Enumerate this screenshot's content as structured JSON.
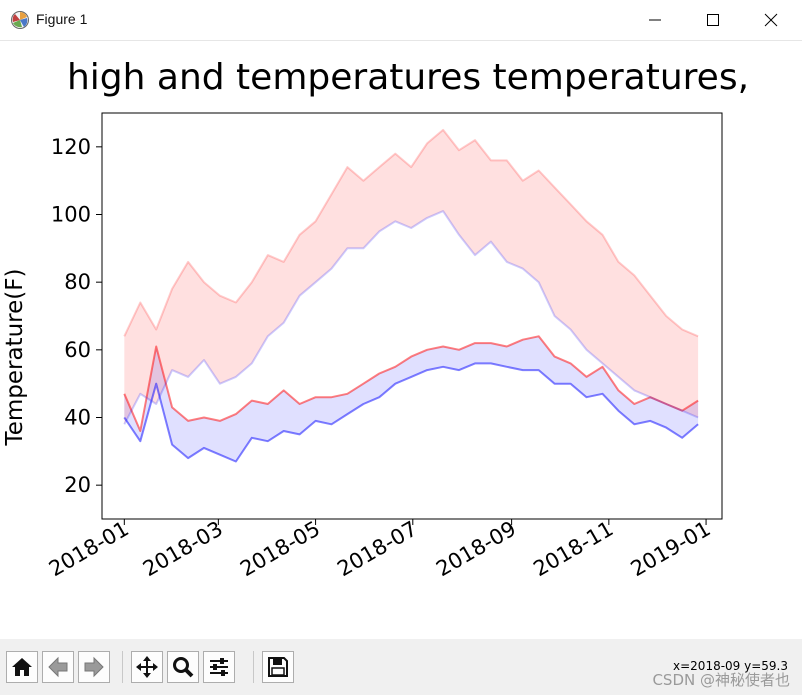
{
  "window": {
    "title": "Figure 1",
    "app_icon": "matplotlib-icon",
    "controls": [
      "minimize-icon",
      "maximize-icon",
      "close-icon"
    ]
  },
  "toolbar": {
    "buttons": [
      "home-icon",
      "back-arrow-icon",
      "forward-arrow-icon",
      "pan-icon",
      "zoom-icon",
      "configure-subplots-icon",
      "save-icon"
    ],
    "coordinate_readout": "x=2018-09 y=59.3",
    "watermark": "CSDN @神秘使者也"
  },
  "chart_data": {
    "type": "line",
    "title": "high and temperatures temperatures,",
    "xlabel": "",
    "ylabel": "Temperature(F)",
    "x_tick_labels": [
      "2018-01",
      "2018-03",
      "2018-05",
      "2018-07",
      "2018-09",
      "2018-11",
      "2019-01"
    ],
    "y_ticks": [
      20,
      40,
      60,
      80,
      100,
      120
    ],
    "ylim": [
      10,
      130
    ],
    "xlim": [
      "2017-12-18",
      "2019-01-11"
    ],
    "grid": false,
    "colors": {
      "high": "#ff0000",
      "low": "#0000ff",
      "high_band": "#ff0000",
      "low_band": "#0000ff"
    },
    "series": [
      {
        "key": "high",
        "dates": [
          "2018-01-01",
          "2018-01-11",
          "2018-01-21",
          "2018-01-31",
          "2018-02-10",
          "2018-02-20",
          "2018-03-02",
          "2018-03-12",
          "2018-03-22",
          "2018-04-01",
          "2018-04-11",
          "2018-04-21",
          "2018-05-01",
          "2018-05-11",
          "2018-05-21",
          "2018-05-31",
          "2018-06-10",
          "2018-06-20",
          "2018-06-30",
          "2018-07-10",
          "2018-07-20",
          "2018-07-30",
          "2018-08-09",
          "2018-08-19",
          "2018-08-29",
          "2018-09-08",
          "2018-09-18",
          "2018-09-28",
          "2018-10-08",
          "2018-10-18",
          "2018-10-28",
          "2018-11-07",
          "2018-11-17",
          "2018-11-27",
          "2018-12-07",
          "2018-12-17",
          "2018-12-27"
        ],
        "values": [
          47,
          36,
          61,
          43,
          39,
          40,
          39,
          41,
          45,
          44,
          48,
          44,
          46,
          46,
          47,
          50,
          53,
          55,
          58,
          60,
          61,
          60,
          62,
          62,
          61,
          63,
          64,
          58,
          56,
          52,
          55,
          48,
          44,
          46,
          44,
          42,
          45
        ],
        "alpha": 0.5
      },
      {
        "key": "low",
        "dates": [
          "2018-01-01",
          "2018-01-11",
          "2018-01-21",
          "2018-01-31",
          "2018-02-10",
          "2018-02-20",
          "2018-03-02",
          "2018-03-12",
          "2018-03-22",
          "2018-04-01",
          "2018-04-11",
          "2018-04-21",
          "2018-05-01",
          "2018-05-11",
          "2018-05-21",
          "2018-05-31",
          "2018-06-10",
          "2018-06-20",
          "2018-06-30",
          "2018-07-10",
          "2018-07-20",
          "2018-07-30",
          "2018-08-09",
          "2018-08-19",
          "2018-08-29",
          "2018-09-08",
          "2018-09-18",
          "2018-09-28",
          "2018-10-08",
          "2018-10-18",
          "2018-10-28",
          "2018-11-07",
          "2018-11-17",
          "2018-11-27",
          "2018-12-07",
          "2018-12-17",
          "2018-12-27"
        ],
        "values": [
          40,
          33,
          50,
          32,
          28,
          31,
          29,
          27,
          34,
          33,
          36,
          35,
          39,
          38,
          41,
          44,
          46,
          50,
          52,
          54,
          55,
          54,
          56,
          56,
          55,
          54,
          54,
          50,
          50,
          46,
          47,
          42,
          38,
          39,
          37,
          34,
          38
        ],
        "alpha": 0.5
      },
      {
        "key": "high_band",
        "dates": [
          "2018-01-01",
          "2018-01-11",
          "2018-01-21",
          "2018-01-31",
          "2018-02-10",
          "2018-02-20",
          "2018-03-02",
          "2018-03-12",
          "2018-03-22",
          "2018-04-01",
          "2018-04-11",
          "2018-04-21",
          "2018-05-01",
          "2018-05-11",
          "2018-05-21",
          "2018-05-31",
          "2018-06-10",
          "2018-06-20",
          "2018-06-30",
          "2018-07-10",
          "2018-07-20",
          "2018-07-30",
          "2018-08-09",
          "2018-08-19",
          "2018-08-29",
          "2018-09-08",
          "2018-09-18",
          "2018-09-28",
          "2018-10-08",
          "2018-10-18",
          "2018-10-28",
          "2018-11-07",
          "2018-11-17",
          "2018-11-27",
          "2018-12-07",
          "2018-12-17",
          "2018-12-27"
        ],
        "values": [
          64,
          74,
          66,
          78,
          86,
          80,
          76,
          74,
          80,
          88,
          86,
          94,
          98,
          106,
          114,
          110,
          114,
          118,
          114,
          121,
          125,
          119,
          122,
          116,
          116,
          110,
          113,
          108,
          103,
          98,
          94,
          86,
          82,
          76,
          70,
          66,
          64
        ],
        "alpha": 0.2
      },
      {
        "key": "low_band",
        "dates": [
          "2018-01-01",
          "2018-01-11",
          "2018-01-21",
          "2018-01-31",
          "2018-02-10",
          "2018-02-20",
          "2018-03-02",
          "2018-03-12",
          "2018-03-22",
          "2018-04-01",
          "2018-04-11",
          "2018-04-21",
          "2018-05-01",
          "2018-05-11",
          "2018-05-21",
          "2018-05-31",
          "2018-06-10",
          "2018-06-20",
          "2018-06-30",
          "2018-07-10",
          "2018-07-20",
          "2018-07-30",
          "2018-08-09",
          "2018-08-19",
          "2018-08-29",
          "2018-09-08",
          "2018-09-18",
          "2018-09-28",
          "2018-10-08",
          "2018-10-18",
          "2018-10-28",
          "2018-11-07",
          "2018-11-17",
          "2018-11-27",
          "2018-12-07",
          "2018-12-17",
          "2018-12-27"
        ],
        "values": [
          38,
          47,
          44,
          54,
          52,
          57,
          50,
          52,
          56,
          64,
          68,
          76,
          80,
          84,
          90,
          90,
          95,
          98,
          96,
          99,
          101,
          94,
          88,
          92,
          86,
          84,
          80,
          70,
          66,
          60,
          56,
          52,
          48,
          46,
          44,
          42,
          40
        ],
        "alpha": 0.2
      }
    ],
    "fills": [
      {
        "between": [
          "high",
          "low"
        ],
        "color": "#0000ff",
        "alpha": 0.12
      },
      {
        "between": [
          "high_band",
          "low_band"
        ],
        "color": "#ff0000",
        "alpha": 0.12
      }
    ]
  }
}
